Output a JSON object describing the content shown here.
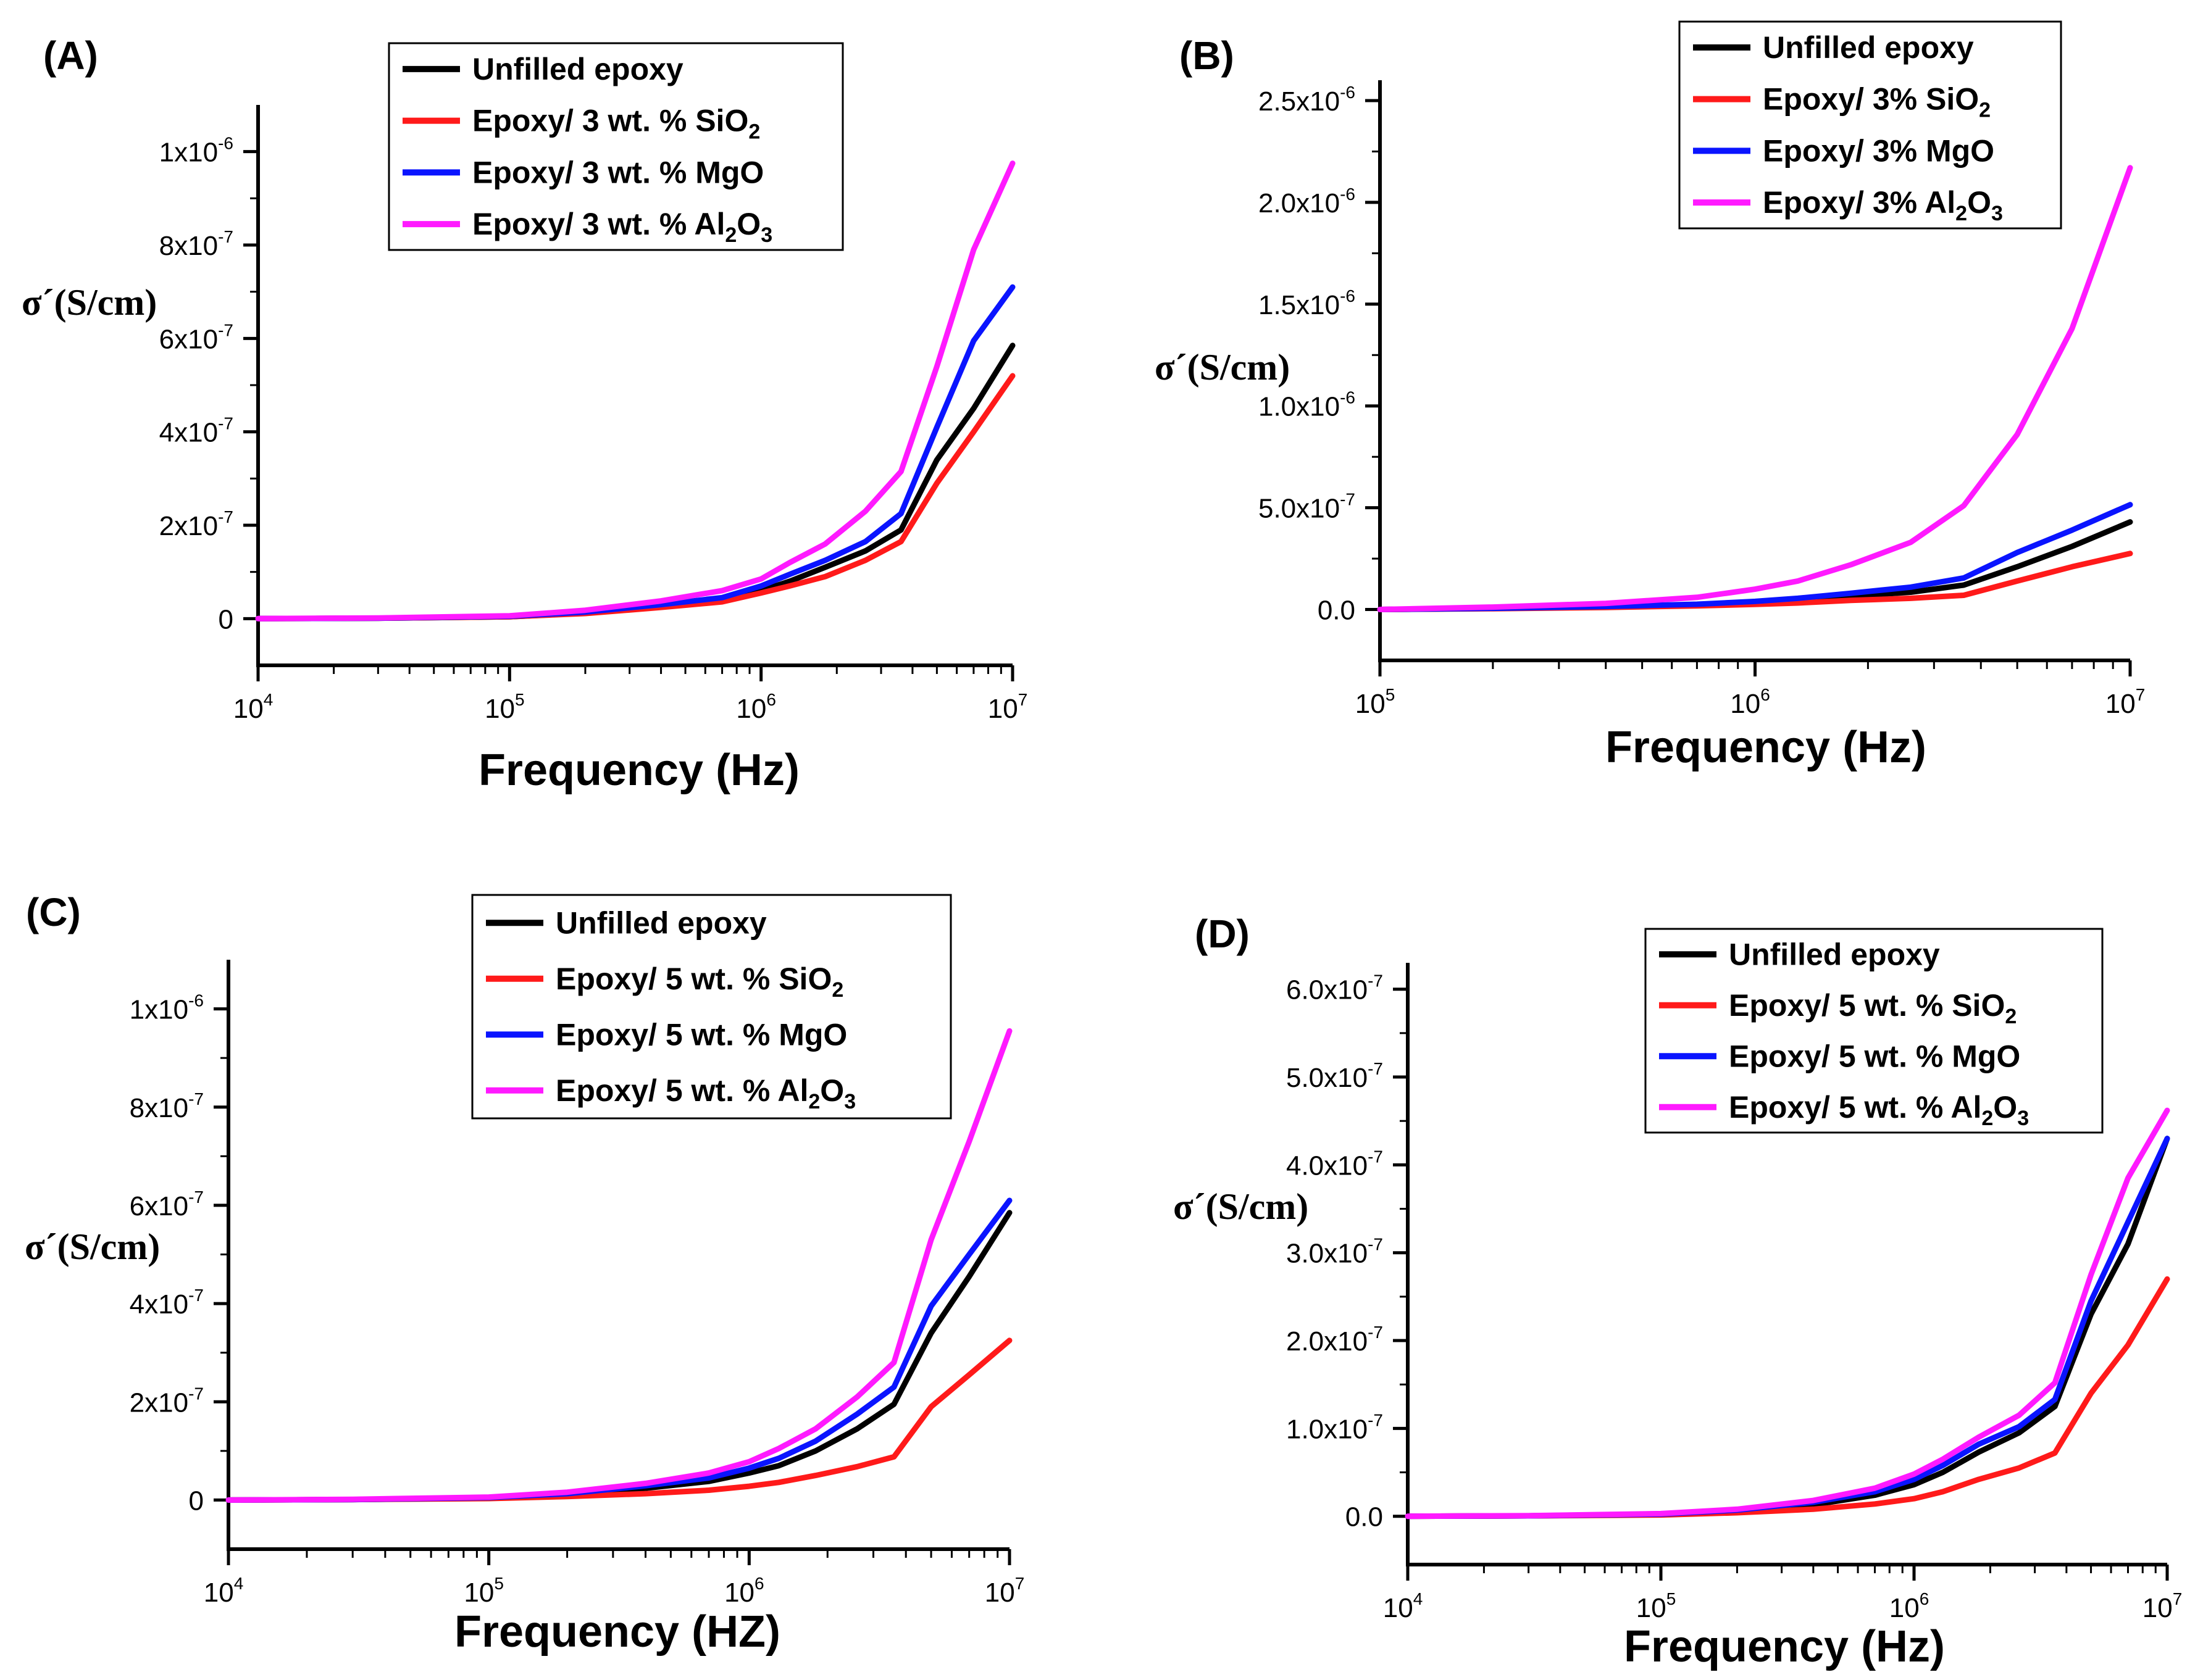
{
  "colors": {
    "unfilled": "#000000",
    "sio2": "#ff1a1a",
    "mgo": "#0a14ff",
    "al2o3": "#ff1aff"
  },
  "chart_data": [
    {
      "id": "A",
      "panel_label": "(A)",
      "type": "line",
      "x_scale": "log",
      "xlabel": "Frequency (Hz)",
      "ylabel": "σ´(S/cm)",
      "xlim": [
        10000,
        10000000
      ],
      "ylim": [
        -1e-07,
        1.1e-06
      ],
      "x_ticks": [
        {
          "base": "10",
          "exp": "4"
        },
        {
          "base": "10",
          "exp": "5"
        },
        {
          "base": "10",
          "exp": "6"
        },
        {
          "base": "10",
          "exp": "7"
        }
      ],
      "y_ticks": [
        {
          "value": 0,
          "base": "0",
          "exp": ""
        },
        {
          "value": 2e-07,
          "base": "2x10",
          "exp": "-7"
        },
        {
          "value": 4e-07,
          "base": "4x10",
          "exp": "-7"
        },
        {
          "value": 6e-07,
          "base": "6x10",
          "exp": "-7"
        },
        {
          "value": 8e-07,
          "base": "8x10",
          "exp": "-7"
        },
        {
          "value": 1e-06,
          "base": "1x10",
          "exp": "-6"
        }
      ],
      "legend_position": "top-center",
      "x": [
        10000,
        30000,
        100000,
        200000,
        400000,
        700000,
        1000000,
        1300000,
        1800000,
        2600000,
        3600000,
        5000000,
        7000000,
        10000000
      ],
      "series": [
        {
          "name": "Unfilled epoxy",
          "sub": "",
          "color_key": "unfilled",
          "values": [
            0,
            1e-09,
            4e-09,
            1.2e-08,
            2.6e-08,
            4e-08,
            6e-08,
            8e-08,
            1.1e-07,
            1.45e-07,
            1.9e-07,
            3.4e-07,
            4.5e-07,
            5.85e-07
          ]
        },
        {
          "name": "Epoxy/ 3 wt. % SiO",
          "sub": "2",
          "color_key": "sio2",
          "values": [
            0,
            1e-09,
            4e-09,
            1.1e-08,
            2.4e-08,
            3.6e-08,
            5.5e-08,
            7e-08,
            9e-08,
            1.25e-07,
            1.65e-07,
            2.9e-07,
            4e-07,
            5.2e-07
          ]
        },
        {
          "name": "Epoxy/ 3 wt. % MgO",
          "sub": "",
          "color_key": "mgo",
          "values": [
            0,
            1e-09,
            5e-09,
            1.4e-08,
            3e-08,
            4.5e-08,
            7e-08,
            9.5e-08,
            1.25e-07,
            1.65e-07,
            2.25e-07,
            4.1e-07,
            5.95e-07,
            7.1e-07
          ]
        },
        {
          "name": "Epoxy/ 3 wt. % Al",
          "sub": "2",
          "tail": "O",
          "sub2": "3",
          "color_key": "al2o3",
          "values": [
            0,
            1.5e-09,
            6e-09,
            1.8e-08,
            3.8e-08,
            6e-08,
            8.5e-08,
            1.2e-07,
            1.6e-07,
            2.3e-07,
            3.15e-07,
            5.4e-07,
            7.9e-07,
            9.75e-07
          ]
        }
      ]
    },
    {
      "id": "B",
      "panel_label": "(B)",
      "type": "line",
      "x_scale": "log",
      "xlabel": "Frequency (Hz)",
      "ylabel": "σ´(S/cm)",
      "xlim": [
        100000,
        10000000
      ],
      "ylim": [
        -2.5e-07,
        2.6e-06
      ],
      "x_ticks": [
        {
          "base": "10",
          "exp": "5"
        },
        {
          "base": "10",
          "exp": "6"
        },
        {
          "base": "10",
          "exp": "7"
        }
      ],
      "y_ticks": [
        {
          "value": 0,
          "base": "0.0",
          "exp": ""
        },
        {
          "value": 5e-07,
          "base": "5.0x10",
          "exp": "-7"
        },
        {
          "value": 1e-06,
          "base": "1.0x10",
          "exp": "-6"
        },
        {
          "value": 1.5e-06,
          "base": "1.5x10",
          "exp": "-6"
        },
        {
          "value": 2e-06,
          "base": "2.0x10",
          "exp": "-6"
        },
        {
          "value": 2.5e-06,
          "base": "2.5x10",
          "exp": "-6"
        }
      ],
      "legend_position": "top-right",
      "x": [
        100000,
        200000,
        400000,
        700000,
        1000000,
        1300000,
        1800000,
        2600000,
        3600000,
        5000000,
        7000000,
        10000000
      ],
      "series": [
        {
          "name": "Unfilled epoxy",
          "sub": "",
          "color_key": "unfilled",
          "values": [
            0,
            5e-09,
            1.2e-08,
            2.2e-08,
            3.5e-08,
            4.5e-08,
            6.5e-08,
            8.5e-08,
            1.2e-07,
            2.1e-07,
            3.1e-07,
            4.3e-07
          ]
        },
        {
          "name": "Epoxy/ 3% SiO",
          "sub": "2",
          "color_key": "sio2",
          "values": [
            0,
            4e-09,
            1e-08,
            1.8e-08,
            2.5e-08,
            3.2e-08,
            4.5e-08,
            5.5e-08,
            7e-08,
            1.4e-07,
            2.1e-07,
            2.75e-07
          ]
        },
        {
          "name": "Epoxy/ 3% MgO",
          "sub": "",
          "color_key": "mgo",
          "values": [
            0,
            6e-09,
            1.5e-08,
            2.6e-08,
            4e-08,
            5.5e-08,
            8e-08,
            1.1e-07,
            1.55e-07,
            2.8e-07,
            3.9e-07,
            5.15e-07
          ]
        },
        {
          "name": "Epoxy/ 3% Al",
          "sub": "2",
          "tail": "O",
          "sub2": "3",
          "color_key": "al2o3",
          "values": [
            0,
            1.2e-08,
            3e-08,
            6e-08,
            1e-07,
            1.4e-07,
            2.2e-07,
            3.3e-07,
            5.1e-07,
            8.6e-07,
            1.38e-06,
            2.17e-06
          ]
        }
      ]
    },
    {
      "id": "C",
      "panel_label": "(C)",
      "type": "line",
      "x_scale": "log",
      "xlabel": "Frequency (HZ)",
      "ylabel": "σ´(S/cm)",
      "xlim": [
        10000,
        10000000
      ],
      "ylim": [
        -1e-07,
        1.1e-06
      ],
      "x_ticks": [
        {
          "base": "10",
          "exp": "4"
        },
        {
          "base": "10",
          "exp": "5"
        },
        {
          "base": "10",
          "exp": "6"
        },
        {
          "base": "10",
          "exp": "7"
        }
      ],
      "y_ticks": [
        {
          "value": 0,
          "base": "0",
          "exp": ""
        },
        {
          "value": 2e-07,
          "base": "2x10",
          "exp": "-7"
        },
        {
          "value": 4e-07,
          "base": "4x10",
          "exp": "-7"
        },
        {
          "value": 6e-07,
          "base": "6x10",
          "exp": "-7"
        },
        {
          "value": 8e-07,
          "base": "8x10",
          "exp": "-7"
        },
        {
          "value": 1e-06,
          "base": "1x10",
          "exp": "-6"
        }
      ],
      "legend_position": "top-center",
      "x": [
        10000,
        30000,
        100000,
        200000,
        400000,
        700000,
        1000000,
        1300000,
        1800000,
        2600000,
        3600000,
        5000000,
        7000000,
        10000000
      ],
      "series": [
        {
          "name": "Unfilled epoxy",
          "sub": "",
          "color_key": "unfilled",
          "values": [
            0,
            1e-09,
            4e-09,
            1.1e-08,
            2.4e-08,
            3.8e-08,
            5.5e-08,
            7e-08,
            1e-07,
            1.45e-07,
            1.95e-07,
            3.4e-07,
            4.55e-07,
            5.85e-07
          ]
        },
        {
          "name": "Epoxy/ 5 wt. % SiO",
          "sub": "2",
          "color_key": "sio2",
          "values": [
            0,
            1e-09,
            3e-09,
            7e-09,
            1.3e-08,
            2e-08,
            2.8e-08,
            3.6e-08,
            5e-08,
            6.8e-08,
            8.8e-08,
            1.9e-07,
            2.55e-07,
            3.25e-07
          ]
        },
        {
          "name": "Epoxy/ 5 wt. % MgO",
          "sub": "",
          "color_key": "mgo",
          "values": [
            0,
            1e-09,
            5e-09,
            1.3e-08,
            2.9e-08,
            4.5e-08,
            6.5e-08,
            8.5e-08,
            1.2e-07,
            1.75e-07,
            2.3e-07,
            3.95e-07,
            5e-07,
            6.1e-07
          ]
        },
        {
          "name": "Epoxy/ 5 wt. % Al",
          "sub": "2",
          "tail": "O",
          "sub2": "3",
          "color_key": "al2o3",
          "values": [
            0,
            1.5e-09,
            6e-09,
            1.6e-08,
            3.4e-08,
            5.5e-08,
            7.8e-08,
            1.05e-07,
            1.45e-07,
            2.1e-07,
            2.8e-07,
            5.3e-07,
            7.3e-07,
            9.55e-07
          ]
        }
      ]
    },
    {
      "id": "D",
      "panel_label": "(D)",
      "type": "line",
      "x_scale": "log",
      "xlabel": "Frequency (Hz)",
      "ylabel": "σ´(S/cm)",
      "xlim": [
        10000,
        10000000
      ],
      "ylim": [
        -5.5e-08,
        6.3e-07
      ],
      "x_ticks": [
        {
          "base": "10",
          "exp": "4"
        },
        {
          "base": "10",
          "exp": "5"
        },
        {
          "base": "10",
          "exp": "6"
        },
        {
          "base": "10",
          "exp": "7"
        }
      ],
      "y_ticks": [
        {
          "value": 0,
          "base": "0.0",
          "exp": ""
        },
        {
          "value": 1e-07,
          "base": "1.0x10",
          "exp": "-7"
        },
        {
          "value": 2e-07,
          "base": "2.0x10",
          "exp": "-7"
        },
        {
          "value": 3e-07,
          "base": "3.0x10",
          "exp": "-7"
        },
        {
          "value": 4e-07,
          "base": "4.0x10",
          "exp": "-7"
        },
        {
          "value": 5e-07,
          "base": "5.0x10",
          "exp": "-7"
        },
        {
          "value": 6e-07,
          "base": "6.0x10",
          "exp": "-7"
        }
      ],
      "legend_position": "top-right",
      "x": [
        10000,
        30000,
        100000,
        200000,
        400000,
        700000,
        1000000,
        1300000,
        1800000,
        2600000,
        3600000,
        5000000,
        7000000,
        10000000
      ],
      "series": [
        {
          "name": "Unfilled epoxy",
          "sub": "",
          "color_key": "unfilled",
          "values": [
            0,
            5e-10,
            2e-09,
            6e-09,
            1.3e-08,
            2.4e-08,
            3.6e-08,
            5e-08,
            7.3e-08,
            9.5e-08,
            1.25e-07,
            2.3e-07,
            3.1e-07,
            4.3e-07
          ]
        },
        {
          "name": "Epoxy/ 5 wt. % SiO",
          "sub": "2",
          "color_key": "sio2",
          "values": [
            0,
            5e-10,
            1.5e-09,
            4e-09,
            8e-09,
            1.4e-08,
            2e-08,
            2.8e-08,
            4.2e-08,
            5.5e-08,
            7.2e-08,
            1.4e-07,
            1.95e-07,
            2.7e-07
          ]
        },
        {
          "name": "Epoxy/ 5 wt. % MgO",
          "sub": "",
          "color_key": "mgo",
          "values": [
            0,
            5e-10,
            2.5e-09,
            7e-09,
            1.6e-08,
            2.8e-08,
            4.2e-08,
            5.8e-08,
            8.2e-08,
            1.02e-07,
            1.33e-07,
            2.45e-07,
            3.35e-07,
            4.3e-07
          ]
        },
        {
          "name": "Epoxy/ 5 wt. % Al",
          "sub": "2",
          "tail": "O",
          "sub2": "3",
          "color_key": "al2o3",
          "values": [
            0,
            7e-10,
            3e-09,
            8e-09,
            1.8e-08,
            3.2e-08,
            4.8e-08,
            6.5e-08,
            9e-08,
            1.15e-07,
            1.52e-07,
            2.75e-07,
            3.85e-07,
            4.62e-07
          ]
        }
      ]
    }
  ]
}
